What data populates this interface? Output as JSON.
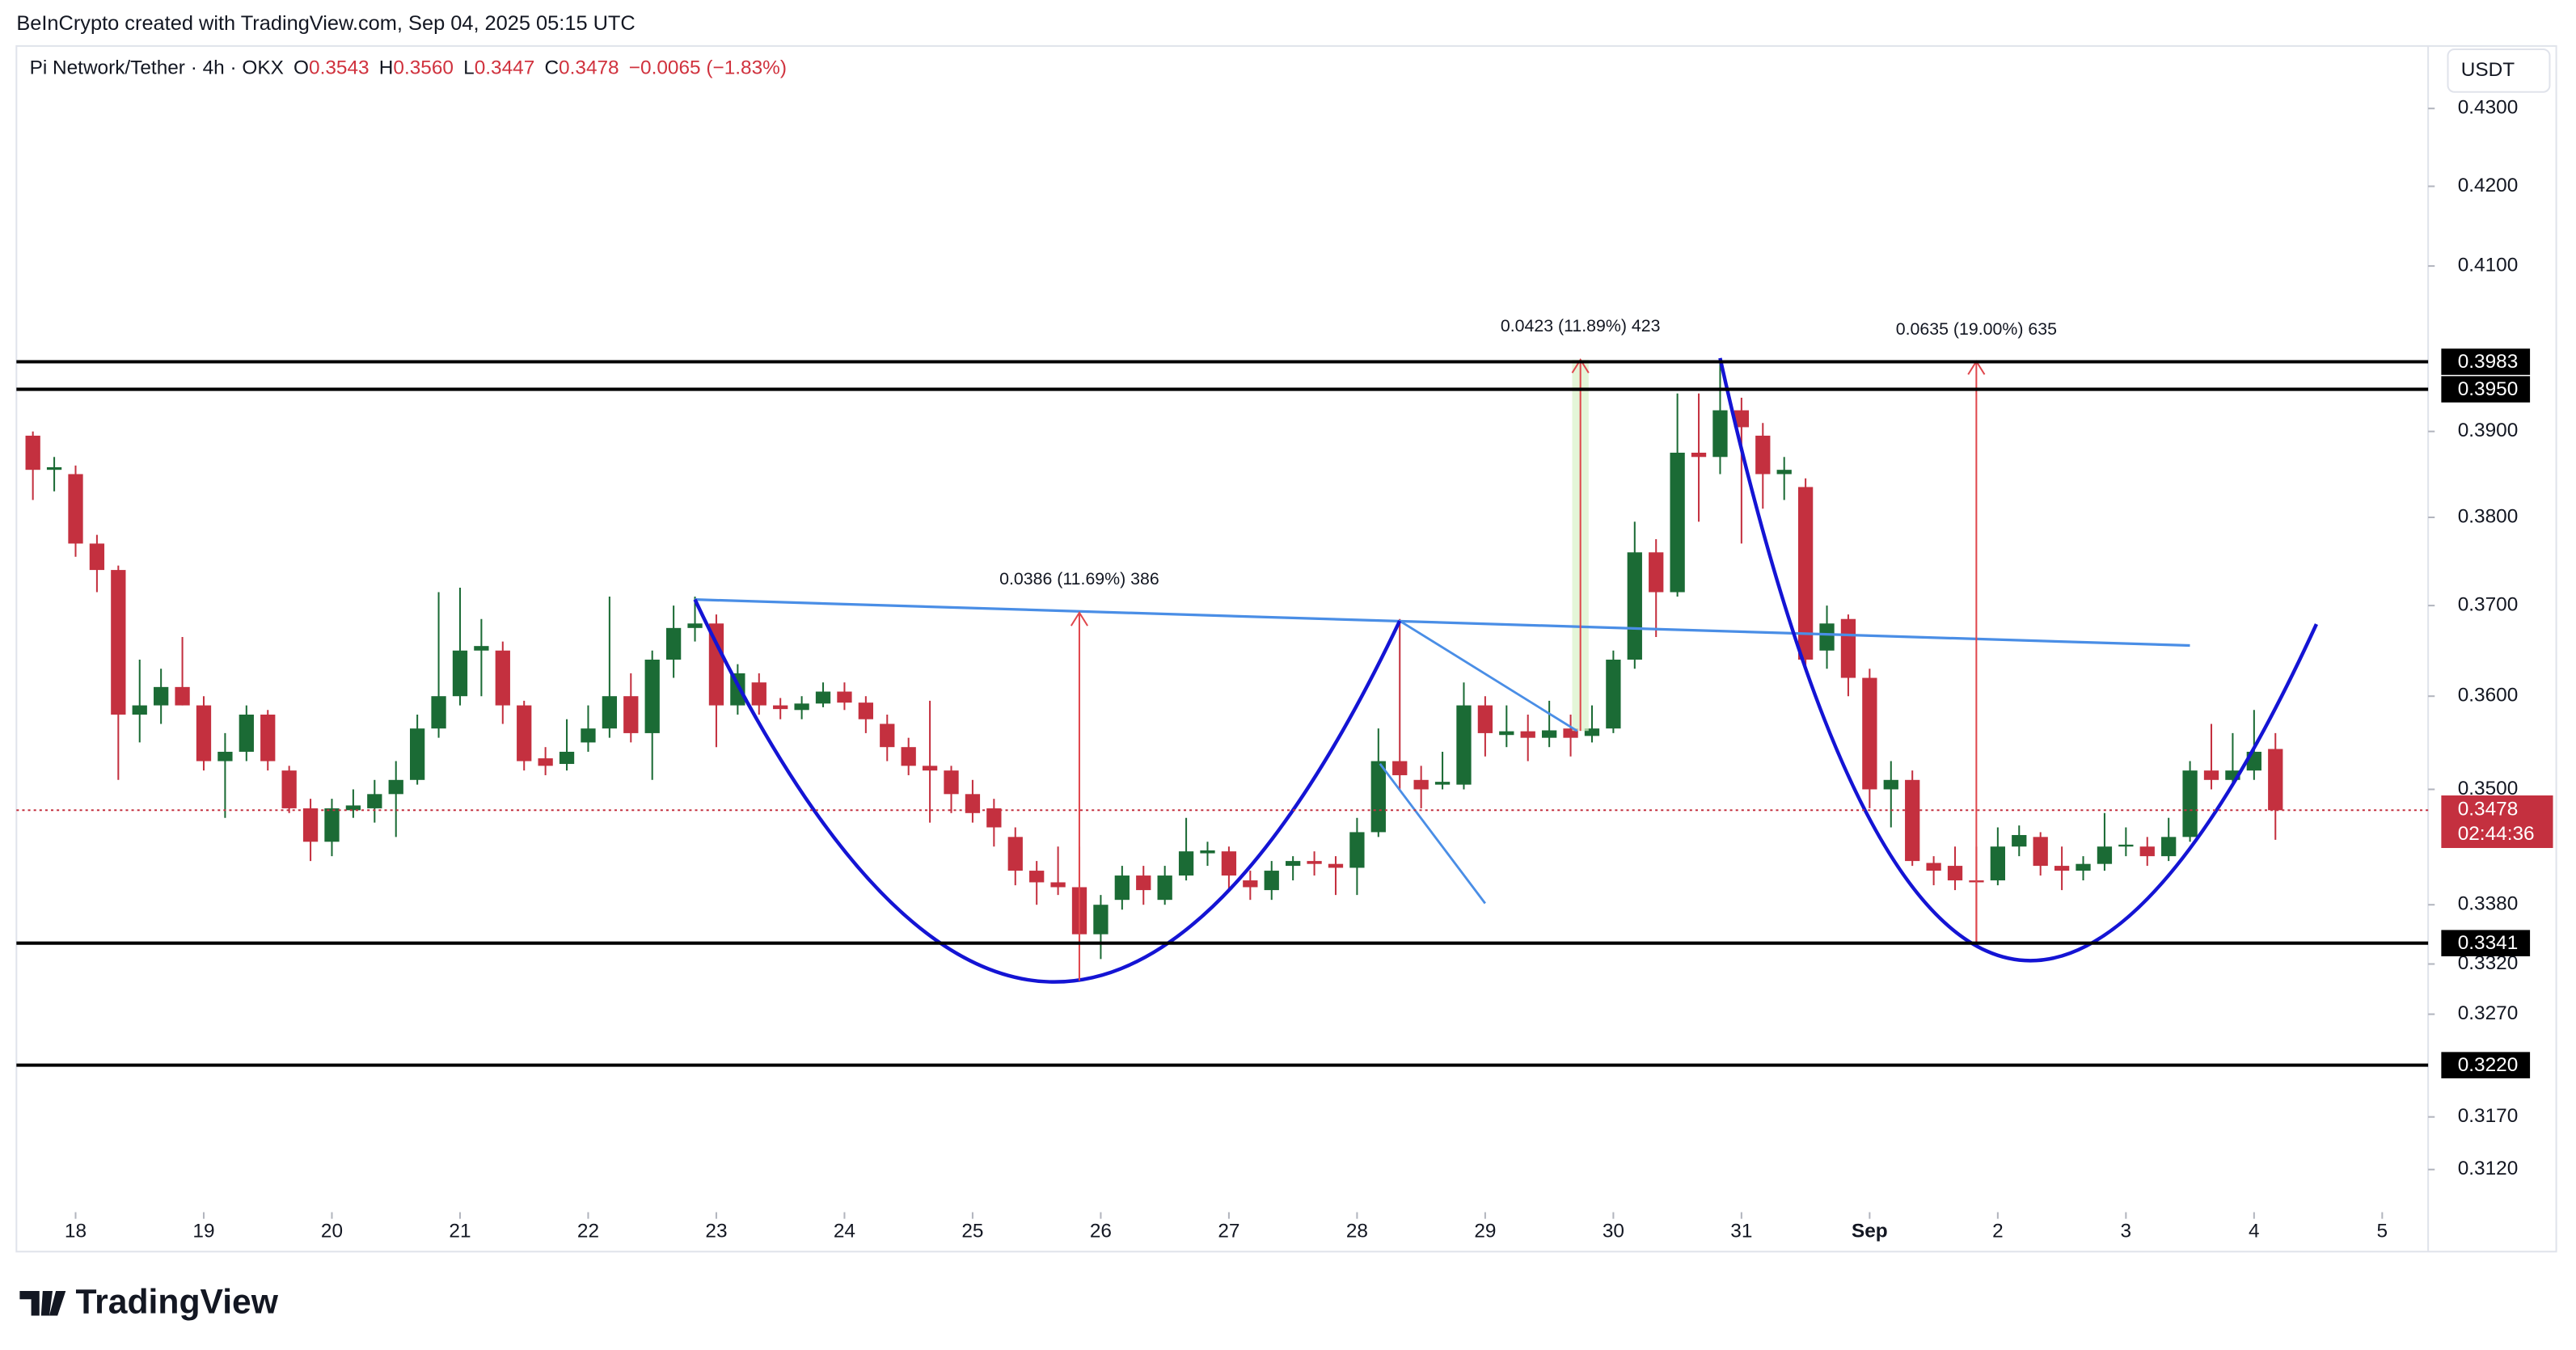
{
  "header": {
    "credit": "BeInCrypto created with TradingView.com, Sep 04, 2025 05:15 UTC",
    "symbol": "Pi Network/Tether · 4h · OKX",
    "o_key": "O",
    "o": "0.3543",
    "h_key": "H",
    "h": "0.3560",
    "l_key": "L",
    "l": "0.3447",
    "c_key": "C",
    "c": "0.3478",
    "change": "−0.0065 (−1.83%)"
  },
  "logo": "TradingView",
  "chart_data": {
    "type": "candlestick",
    "currency": "USDT",
    "log_scale": true,
    "up_color": "#1b6b35",
    "down_color": "#c4303f",
    "open": [
      0.3895,
      0.3855,
      0.385,
      0.377,
      0.374,
      0.358,
      0.359,
      0.361,
      0.359,
      0.353,
      0.354,
      0.358,
      0.352,
      0.348,
      0.3445,
      0.3478,
      0.348,
      0.3495,
      0.351,
      0.3565,
      0.36,
      0.365,
      0.365,
      0.359,
      0.3533,
      0.3527,
      0.355,
      0.3565,
      0.36,
      0.356,
      0.364,
      0.3675,
      0.368,
      0.359,
      0.3615,
      0.359,
      0.3585,
      0.3592,
      0.3605,
      0.3593,
      0.357,
      0.3545,
      0.3525,
      0.352,
      0.3495,
      0.348,
      0.345,
      0.3415,
      0.3403,
      0.3398,
      0.335,
      0.3385,
      0.341,
      0.3385,
      0.341,
      0.3433,
      0.3435,
      0.3405,
      0.3395,
      0.342,
      0.3425,
      0.3422,
      0.3418,
      0.3455,
      0.353,
      0.351,
      0.3505,
      0.3505,
      0.359,
      0.3558,
      0.3562,
      0.3555,
      0.3565,
      0.3557,
      0.3565,
      0.364,
      0.376,
      0.3715,
      0.3875,
      0.387,
      0.3925,
      0.3895,
      0.385,
      0.3835,
      0.365,
      0.3685,
      0.362,
      0.35,
      0.351,
      0.3423,
      0.342,
      0.3405,
      0.3405,
      0.344,
      0.345,
      0.342,
      0.3415,
      0.3422,
      0.344,
      0.344,
      0.343,
      0.345,
      0.352,
      0.351,
      0.352,
      0.3543
    ],
    "high": [
      0.39,
      0.387,
      0.386,
      0.378,
      0.3745,
      0.364,
      0.363,
      0.3665,
      0.36,
      0.356,
      0.359,
      0.3585,
      0.3525,
      0.349,
      0.349,
      0.35,
      0.351,
      0.353,
      0.358,
      0.3715,
      0.372,
      0.3685,
      0.366,
      0.3595,
      0.3545,
      0.3575,
      0.359,
      0.371,
      0.3625,
      0.365,
      0.37,
      0.371,
      0.369,
      0.3635,
      0.3625,
      0.3598,
      0.36,
      0.3615,
      0.3615,
      0.36,
      0.358,
      0.3555,
      0.3595,
      0.3525,
      0.351,
      0.349,
      0.346,
      0.3425,
      0.344,
      0.344,
      0.339,
      0.342,
      0.342,
      0.342,
      0.347,
      0.3445,
      0.344,
      0.3415,
      0.3425,
      0.343,
      0.3435,
      0.343,
      0.347,
      0.3565,
      0.3685,
      0.3525,
      0.354,
      0.3615,
      0.36,
      0.359,
      0.358,
      0.3595,
      0.358,
      0.359,
      0.365,
      0.3795,
      0.3775,
      0.3945,
      0.3945,
      0.3983,
      0.394,
      0.391,
      0.387,
      0.3845,
      0.37,
      0.369,
      0.363,
      0.353,
      0.352,
      0.343,
      0.344,
      0.344,
      0.346,
      0.3462,
      0.3455,
      0.344,
      0.343,
      0.3475,
      0.346,
      0.345,
      0.347,
      0.353,
      0.357,
      0.356,
      0.3585,
      0.356
    ],
    "low": [
      0.382,
      0.383,
      0.3755,
      0.3715,
      0.351,
      0.355,
      0.357,
      0.359,
      0.352,
      0.347,
      0.353,
      0.352,
      0.3475,
      0.3425,
      0.343,
      0.347,
      0.3465,
      0.345,
      0.3505,
      0.3555,
      0.359,
      0.36,
      0.357,
      0.352,
      0.3515,
      0.352,
      0.354,
      0.3555,
      0.355,
      0.351,
      0.362,
      0.366,
      0.3545,
      0.358,
      0.358,
      0.3575,
      0.3575,
      0.3588,
      0.3585,
      0.356,
      0.353,
      0.3515,
      0.3465,
      0.3475,
      0.3465,
      0.344,
      0.34,
      0.338,
      0.339,
      0.334,
      0.3325,
      0.3375,
      0.338,
      0.338,
      0.3405,
      0.342,
      0.3395,
      0.3385,
      0.3385,
      0.3405,
      0.341,
      0.339,
      0.339,
      0.345,
      0.35,
      0.348,
      0.35,
      0.35,
      0.3535,
      0.3545,
      0.353,
      0.3545,
      0.3535,
      0.355,
      0.356,
      0.363,
      0.3665,
      0.371,
      0.3795,
      0.385,
      0.377,
      0.381,
      0.382,
      0.363,
      0.363,
      0.36,
      0.348,
      0.346,
      0.342,
      0.34,
      0.3395,
      0.3341,
      0.34,
      0.343,
      0.341,
      0.3395,
      0.3405,
      0.3415,
      0.343,
      0.342,
      0.3425,
      0.3445,
      0.35,
      0.3505,
      0.351,
      0.3447
    ],
    "close": [
      0.3855,
      0.3858,
      0.377,
      0.374,
      0.358,
      0.359,
      0.361,
      0.359,
      0.353,
      0.354,
      0.358,
      0.353,
      0.348,
      0.3445,
      0.348,
      0.3483,
      0.3495,
      0.351,
      0.3565,
      0.36,
      0.365,
      0.3655,
      0.359,
      0.353,
      0.3525,
      0.354,
      0.3565,
      0.36,
      0.356,
      0.364,
      0.3675,
      0.368,
      0.359,
      0.3625,
      0.359,
      0.3586,
      0.3592,
      0.3605,
      0.3593,
      0.3575,
      0.3545,
      0.3525,
      0.352,
      0.3495,
      0.3475,
      0.346,
      0.3415,
      0.3403,
      0.3398,
      0.335,
      0.338,
      0.341,
      0.3395,
      0.341,
      0.3435,
      0.3436,
      0.341,
      0.3398,
      0.3415,
      0.3425,
      0.3422,
      0.3418,
      0.3455,
      0.353,
      0.3515,
      0.35,
      0.3508,
      0.359,
      0.356,
      0.3562,
      0.3555,
      0.3563,
      0.3555,
      0.3565,
      0.364,
      0.376,
      0.3715,
      0.3875,
      0.387,
      0.3925,
      0.3905,
      0.385,
      0.3855,
      0.364,
      0.368,
      0.362,
      0.35,
      0.351,
      0.3425,
      0.3415,
      0.3405,
      0.3403,
      0.344,
      0.3452,
      0.342,
      0.3415,
      0.3422,
      0.344,
      0.3442,
      0.343,
      0.345,
      0.352,
      0.351,
      0.352,
      0.354,
      0.3478
    ],
    "xlim": [
      -0.77,
      112.15
    ],
    "xticks": [
      {
        "value": 2,
        "label": "18"
      },
      {
        "value": 8,
        "label": "19"
      },
      {
        "value": 14,
        "label": "20"
      },
      {
        "value": 20,
        "label": "21"
      },
      {
        "value": 26,
        "label": "22"
      },
      {
        "value": 32,
        "label": "23"
      },
      {
        "value": 38,
        "label": "24"
      },
      {
        "value": 44,
        "label": "25"
      },
      {
        "value": 50,
        "label": "26"
      },
      {
        "value": 56,
        "label": "27"
      },
      {
        "value": 62,
        "label": "28"
      },
      {
        "value": 68,
        "label": "29"
      },
      {
        "value": 74,
        "label": "30"
      },
      {
        "value": 80,
        "label": "31"
      },
      {
        "value": 86,
        "label": "Sep"
      },
      {
        "value": 92,
        "label": "2"
      },
      {
        "value": 98,
        "label": "3"
      },
      {
        "value": 104,
        "label": "4"
      },
      {
        "value": 110,
        "label": "5"
      }
    ],
    "ylim": [
      0.308,
      0.4382
    ],
    "yticks": [
      {
        "value": 0.43,
        "label": "0.4300"
      },
      {
        "value": 0.42,
        "label": "0.4200"
      },
      {
        "value": 0.41,
        "label": "0.4100"
      },
      {
        "value": 0.39,
        "label": "0.3900"
      },
      {
        "value": 0.38,
        "label": "0.3800"
      },
      {
        "value": 0.37,
        "label": "0.3700"
      },
      {
        "value": 0.36,
        "label": "0.3600"
      },
      {
        "value": 0.35,
        "label": "0.3500"
      },
      {
        "value": 0.338,
        "label": "0.3380"
      },
      {
        "value": 0.332,
        "label": "0.3320"
      },
      {
        "value": 0.327,
        "label": "0.3270"
      },
      {
        "value": 0.317,
        "label": "0.3170"
      },
      {
        "value": 0.312,
        "label": "0.3120"
      }
    ],
    "levels": [
      0.3983,
      {
        "value": 0.395,
        "label": "0.3950"
      },
      0.3341,
      {
        "value": 0.322,
        "label": "0.3220"
      }
    ],
    "last_price": 0.3478,
    "countdown": "02:44:36",
    "annotations": [
      "0.0386 (11.69%) 386",
      "0.0423 (11.89%) 423",
      "0.0635 (19.00%) 635"
    ]
  }
}
